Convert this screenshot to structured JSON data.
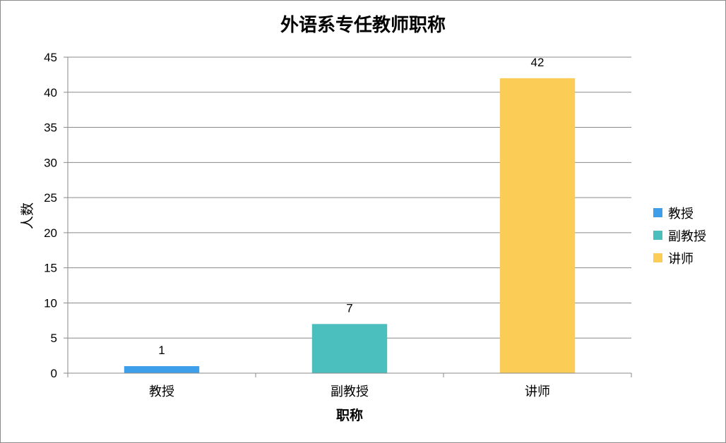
{
  "chart_data": {
    "type": "bar",
    "title": "外语系专任教师职称",
    "xlabel": "职称",
    "ylabel": "人数",
    "categories": [
      "教授",
      "副教授",
      "讲师"
    ],
    "values": [
      1,
      7,
      42
    ],
    "colors": [
      "#3d9ee9",
      "#4bbfbd",
      "#fbcc56"
    ],
    "data_labels": [
      "1",
      "7",
      "42"
    ],
    "ylim": [
      0,
      45
    ],
    "yticks": [
      0,
      5,
      10,
      15,
      20,
      25,
      30,
      35,
      40,
      45
    ],
    "grid": true,
    "legend_position": "right",
    "legend": [
      "教授",
      "副教授",
      "讲师"
    ]
  }
}
